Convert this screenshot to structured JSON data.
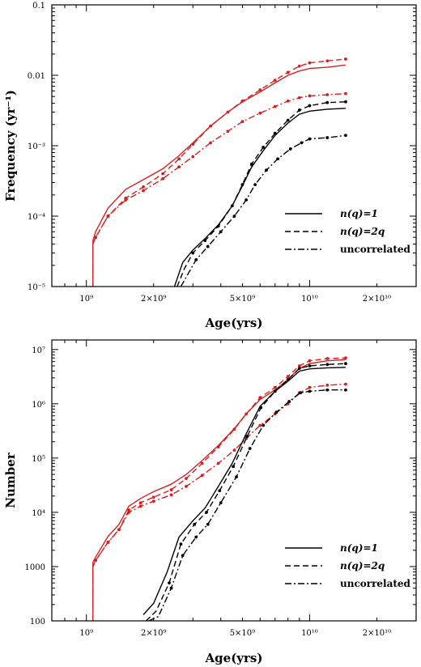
{
  "colors": {
    "red": "#d42020",
    "black": "#000000",
    "frame": "#000000"
  },
  "legend": {
    "entries": [
      {
        "label": "n(q)=1",
        "dash": "solid"
      },
      {
        "label": "n(q)=2q",
        "dash": "dashed"
      },
      {
        "label": "uncorrelated",
        "dash": "dashdot"
      }
    ],
    "placement": "bottom-right"
  },
  "chart_data": [
    {
      "type": "line",
      "xscale": "log",
      "yscale": "log",
      "xlabel": "Age(yrs)",
      "ylabel": "Frequency (yr⁻¹)",
      "xlim": [
        700000000,
        30000000000
      ],
      "ylim": [
        1e-05,
        0.1
      ],
      "xticks": [
        {
          "value": 1000000000,
          "label": "10⁹"
        },
        {
          "value": 2000000000,
          "label": "2×10⁹"
        },
        {
          "value": 5000000000,
          "label": "5×10⁹"
        },
        {
          "value": 10000000000,
          "label": "10¹⁰"
        },
        {
          "value": 20000000000,
          "label": "2×10¹⁰"
        }
      ],
      "yticks": [
        {
          "value": 1e-05,
          "label": "10⁻⁵"
        },
        {
          "value": 0.0001,
          "label": "10⁻⁴"
        },
        {
          "value": 0.001,
          "label": "10⁻³"
        },
        {
          "value": 0.01,
          "label": "0.01"
        },
        {
          "value": 0.1,
          "label": "0.1"
        }
      ],
      "series": [
        {
          "color": "red",
          "dash": "solid",
          "markers": false,
          "x": [
            1070000000,
            1070000000,
            1100000000,
            1250000000,
            1500000000,
            1800000000,
            2200000000,
            2600000000,
            3000000000,
            3600000000,
            4300000000,
            5000000000,
            6000000000,
            7000000000,
            8000000000,
            9000000000,
            10000000000,
            12000000000,
            14500000000
          ],
          "y": [
            1e-05,
            4.5e-05,
            6e-05,
            0.00013,
            0.00024,
            0.00033,
            0.00047,
            0.00072,
            0.0011,
            0.0019,
            0.003,
            0.0042,
            0.0058,
            0.0078,
            0.01,
            0.0115,
            0.0125,
            0.013,
            0.014
          ]
        },
        {
          "color": "red",
          "dash": "dashed",
          "markers": true,
          "x": [
            1070000000,
            1070000000,
            1100000000,
            1250000000,
            1500000000,
            1800000000,
            2200000000,
            2600000000,
            3000000000,
            3600000000,
            4300000000,
            5000000000,
            6000000000,
            7000000000,
            8000000000,
            9000000000,
            10000000000,
            12000000000,
            14500000000
          ],
          "y": [
            1e-05,
            4e-05,
            5e-05,
            0.0001,
            0.00018,
            0.00026,
            0.0004,
            0.00065,
            0.00105,
            0.0019,
            0.003,
            0.0043,
            0.0062,
            0.0085,
            0.011,
            0.0135,
            0.015,
            0.016,
            0.017
          ]
        },
        {
          "color": "red",
          "dash": "dashdot",
          "markers": true,
          "x": [
            1070000000,
            1070000000,
            1100000000,
            1250000000,
            1500000000,
            1800000000,
            2200000000,
            2600000000,
            3000000000,
            3600000000,
            4300000000,
            5000000000,
            6000000000,
            7000000000,
            8000000000,
            9000000000,
            10000000000,
            12000000000,
            14500000000
          ],
          "y": [
            1e-05,
            4e-05,
            5e-05,
            0.0001,
            0.00017,
            0.00023,
            0.00034,
            0.0005,
            0.0007,
            0.0011,
            0.0016,
            0.0022,
            0.0029,
            0.0036,
            0.0043,
            0.0048,
            0.0051,
            0.0053,
            0.0055
          ]
        },
        {
          "color": "black",
          "dash": "solid",
          "markers": false,
          "x": [
            2480000000,
            2700000000,
            3000000000,
            3400000000,
            3900000000,
            4500000000,
            5000000000,
            5500000000,
            6200000000,
            7000000000,
            8000000000,
            9000000000,
            10000000000,
            12000000000,
            14500000000
          ],
          "y": [
            1e-05,
            2.2e-05,
            3.3e-05,
            4.8e-05,
            7.5e-05,
            0.00014,
            0.00027,
            0.0005,
            0.00085,
            0.0014,
            0.0021,
            0.0028,
            0.0031,
            0.0033,
            0.0034
          ]
        },
        {
          "color": "black",
          "dash": "dashed",
          "markers": true,
          "x": [
            2550000000,
            2750000000,
            3000000000,
            3400000000,
            3900000000,
            4500000000,
            5000000000,
            5500000000,
            6200000000,
            7000000000,
            8000000000,
            9000000000,
            10000000000,
            12000000000,
            14500000000
          ],
          "y": [
            1e-05,
            1.8e-05,
            3e-05,
            4.5e-05,
            7.2e-05,
            0.00014,
            0.00028,
            0.00055,
            0.00095,
            0.0015,
            0.0023,
            0.0032,
            0.0037,
            0.0041,
            0.0042
          ]
        },
        {
          "color": "black",
          "dash": "dashdot",
          "markers": true,
          "x": [
            2650000000,
            2850000000,
            3100000000,
            3500000000,
            4000000000,
            4600000000,
            5200000000,
            5700000000,
            6400000000,
            7200000000,
            8200000000,
            9200000000,
            10000000000,
            12000000000,
            14500000000
          ],
          "y": [
            1e-05,
            1.5e-05,
            2.4e-05,
            3.7e-05,
            6e-05,
            0.0001,
            0.00017,
            0.00028,
            0.00045,
            0.00065,
            0.0009,
            0.0011,
            0.00125,
            0.0013,
            0.0014
          ]
        }
      ]
    },
    {
      "type": "line",
      "xscale": "log",
      "yscale": "log",
      "xlabel": "Age(yrs)",
      "ylabel": "Number",
      "xlim": [
        700000000,
        30000000000
      ],
      "ylim": [
        100,
        15000000
      ],
      "xticks": [
        {
          "value": 1000000000,
          "label": "10⁹"
        },
        {
          "value": 2000000000,
          "label": "2×10⁹"
        },
        {
          "value": 5000000000,
          "label": "5×10⁹"
        },
        {
          "value": 10000000000,
          "label": "10¹⁰"
        },
        {
          "value": 20000000000,
          "label": "2×10¹⁰"
        }
      ],
      "yticks": [
        {
          "value": 100,
          "label": "100"
        },
        {
          "value": 1000,
          "label": "1000"
        },
        {
          "value": 10000,
          "label": "10⁴"
        },
        {
          "value": 100000,
          "label": "10⁵"
        },
        {
          "value": 1000000,
          "label": "10⁶"
        },
        {
          "value": 10000000,
          "label": "10⁷"
        }
      ],
      "series": [
        {
          "color": "red",
          "dash": "solid",
          "markers": false,
          "x": [
            1070000000,
            1070000000,
            1100000000,
            1250000000,
            1400000000,
            1550000000,
            1750000000,
            2000000000,
            2400000000,
            2800000000,
            3300000000,
            3900000000,
            4600000000,
            5200000000,
            6000000000,
            7000000000,
            8000000000,
            9000000000,
            10000000000,
            12000000000,
            14500000000
          ],
          "y": [
            100,
            1200,
            1500,
            3600,
            6000,
            13000,
            18000,
            24000,
            33000,
            50000,
            90000,
            170000,
            350000,
            650000,
            1200000,
            1800000,
            2800000,
            4500000,
            5500000,
            6200000,
            6500000
          ]
        },
        {
          "color": "red",
          "dash": "dashed",
          "markers": true,
          "x": [
            1070000000,
            1070000000,
            1100000000,
            1250000000,
            1400000000,
            1550000000,
            1750000000,
            2000000000,
            2400000000,
            2800000000,
            3300000000,
            3900000000,
            4600000000,
            5200000000,
            6000000000,
            7000000000,
            8000000000,
            9000000000,
            10000000000,
            12000000000,
            14500000000
          ],
          "y": [
            100,
            1000,
            1300,
            2800,
            4800,
            11000,
            15000,
            19000,
            26000,
            42000,
            80000,
            160000,
            340000,
            650000,
            1300000,
            2000000,
            3200000,
            5000000,
            6200000,
            6800000,
            7000000
          ]
        },
        {
          "color": "red",
          "dash": "dashdot",
          "markers": true,
          "x": [
            1070000000,
            1070000000,
            1100000000,
            1250000000,
            1400000000,
            1550000000,
            1750000000,
            2000000000,
            2400000000,
            2800000000,
            3300000000,
            3900000000,
            4600000000,
            5200000000,
            6000000000,
            7000000000,
            8000000000,
            9000000000,
            10000000000,
            12000000000,
            14500000000
          ],
          "y": [
            100,
            1000,
            1300,
            2800,
            4800,
            10000,
            13000,
            16000,
            21000,
            30000,
            48000,
            80000,
            140000,
            230000,
            400000,
            650000,
            1000000,
            1600000,
            2000000,
            2200000,
            2300000
          ]
        },
        {
          "color": "black",
          "dash": "solid",
          "markers": false,
          "x": [
            1800000000,
            2000000000,
            2300000000,
            2600000000,
            3000000000,
            3400000000,
            3900000000,
            4500000000,
            5200000000,
            6000000000,
            7000000000,
            8000000000,
            9000000000,
            10000000000,
            12000000000,
            14500000000
          ],
          "y": [
            130,
            210,
            800,
            3500,
            7000,
            12000,
            30000,
            80000,
            280000,
            900000,
            1700000,
            2600000,
            4000000,
            4400000,
            4600000,
            4700000
          ]
        },
        {
          "color": "black",
          "dash": "dashed",
          "markers": true,
          "x": [
            1850000000,
            2050000000,
            2350000000,
            2650000000,
            3050000000,
            3450000000,
            3950000000,
            4550000000,
            5250000000,
            6050000000,
            7000000000,
            8000000000,
            9000000000,
            10000000000,
            12000000000,
            14500000000
          ],
          "y": [
            100,
            150,
            500,
            2600,
            6000,
            10000,
            25000,
            70000,
            250000,
            850000,
            1700000,
            2800000,
            4500000,
            5000000,
            5300000,
            5500000
          ]
        },
        {
          "color": "black",
          "dash": "dashdot",
          "markers": true,
          "x": [
            1900000000,
            2100000000,
            2400000000,
            2700000000,
            3100000000,
            3500000000,
            4000000000,
            4700000000,
            5400000000,
            6200000000,
            7100000000,
            8100000000,
            9100000000,
            10000000000,
            12000000000,
            14500000000
          ],
          "y": [
            100,
            120,
            400,
            1600,
            3500,
            6000,
            15000,
            45000,
            150000,
            400000,
            700000,
            1100000,
            1600000,
            1700000,
            1800000,
            1800000
          ]
        }
      ]
    }
  ]
}
